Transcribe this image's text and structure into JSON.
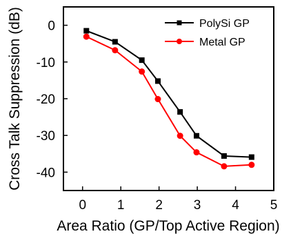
{
  "chart_data": {
    "type": "line",
    "xlabel": "Area Ratio (GP/Top Active Region)",
    "ylabel": "Cross Talk Suppression (dB)",
    "xlim": [
      -0.5,
      5
    ],
    "ylim": [
      -45,
      5
    ],
    "xticks": [
      0,
      1,
      2,
      3,
      4,
      5
    ],
    "yticks": [
      0,
      -10,
      -20,
      -30,
      -40
    ],
    "grid": false,
    "legend_position": "top-right",
    "series": [
      {
        "name": "PolySi GP",
        "color": "#000000",
        "marker": "square",
        "x": [
          0.1,
          0.85,
          1.55,
          1.97,
          2.55,
          2.98,
          3.7,
          4.42
        ],
        "y": [
          -1.5,
          -4.5,
          -9.5,
          -15.2,
          -23.6,
          -30.1,
          -35.6,
          -35.9
        ]
      },
      {
        "name": "Metal GP",
        "color": "#ff0000",
        "marker": "circle",
        "x": [
          0.1,
          0.85,
          1.55,
          1.97,
          2.55,
          2.98,
          3.7,
          4.42
        ],
        "y": [
          -3.1,
          -6.8,
          -12.6,
          -20.1,
          -30.1,
          -34.6,
          -38.4,
          -38.0
        ]
      }
    ]
  }
}
